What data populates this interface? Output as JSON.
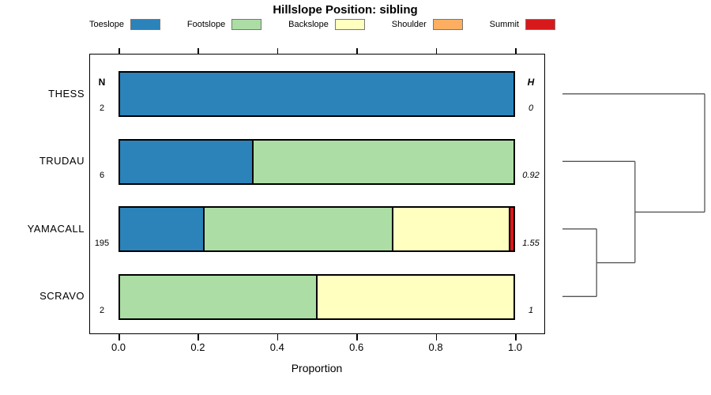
{
  "chart_data": {
    "type": "bar",
    "orientation": "horizontal-stacked",
    "title": "Hillslope Position: sibling",
    "xlabel": "Proportion",
    "xlim": [
      0,
      1
    ],
    "xticks": [
      "0.0",
      "0.2",
      "0.4",
      "0.6",
      "0.8",
      "1.0"
    ],
    "grid": false,
    "legend_position": "top-horizontal",
    "legend": [
      {
        "label": "Toeslope",
        "color": "#2B83BA"
      },
      {
        "label": "Footslope",
        "color": "#ABDDA4"
      },
      {
        "label": "Backslope",
        "color": "#FFFFBF"
      },
      {
        "label": "Shoulder",
        "color": "#FDAE61"
      },
      {
        "label": "Summit",
        "color": "#D7191C"
      }
    ],
    "columns": {
      "left_header": "N",
      "right_header": "H"
    },
    "rows": [
      {
        "label": "THESS",
        "n": "2",
        "h": "0",
        "segments": [
          {
            "class": "Toeslope",
            "value": 1.0
          }
        ]
      },
      {
        "label": "TRUDAU",
        "n": "6",
        "h": "0.92",
        "segments": [
          {
            "class": "Toeslope",
            "value": 0.337
          },
          {
            "class": "Footslope",
            "value": 0.663
          }
        ]
      },
      {
        "label": "YAMACALL",
        "n": "195",
        "h": "1.55",
        "segments": [
          {
            "class": "Toeslope",
            "value": 0.214
          },
          {
            "class": "Footslope",
            "value": 0.482
          },
          {
            "class": "Backslope",
            "value": 0.296
          },
          {
            "class": "Summit",
            "value": 0.008
          }
        ]
      },
      {
        "label": "SCRAVO",
        "n": "2",
        "h": "1",
        "segments": [
          {
            "class": "Footslope",
            "value": 0.5
          },
          {
            "class": "Backslope",
            "value": 0.5
          }
        ]
      }
    ],
    "dendrogram": {
      "merges": [
        {
          "children": [
            "YAMACALL",
            "SCRAVO"
          ],
          "height": 0.24
        },
        {
          "children": [
            "TRUDAU",
            "@0"
          ],
          "height": 0.51
        },
        {
          "children": [
            "THESS",
            "@1"
          ],
          "height": 1.0
        }
      ]
    }
  }
}
